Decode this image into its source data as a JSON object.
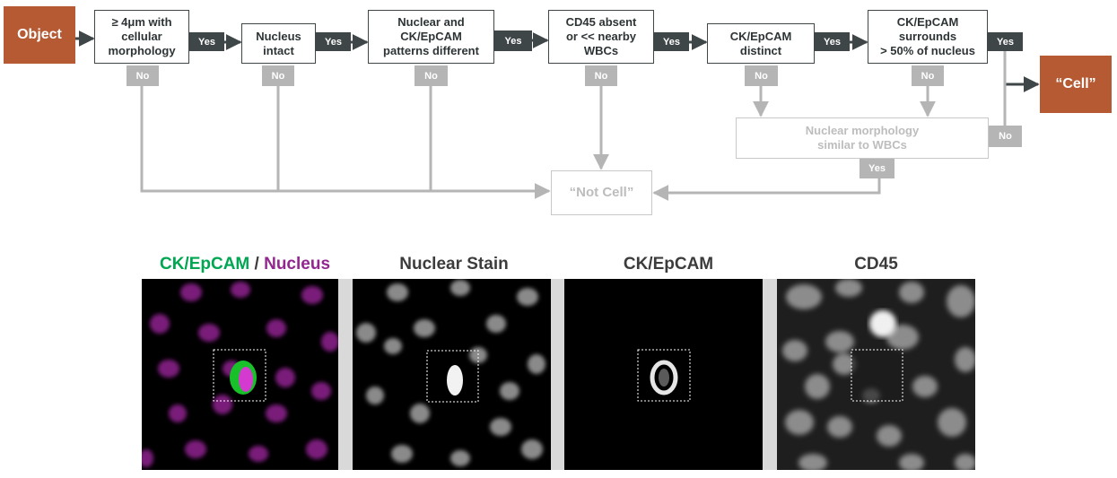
{
  "flowchart": {
    "start": "Object",
    "steps": [
      {
        "id": "size",
        "text": "≥ 4μm with\ncellular\nmorphology",
        "yes": "Yes",
        "no": "No"
      },
      {
        "id": "nucleus",
        "text": "Nucleus\nintact",
        "yes": "Yes",
        "no": "No"
      },
      {
        "id": "patterns",
        "text": "Nuclear and\nCK/EpCAM\npatterns different",
        "yes": "Yes",
        "no": "No"
      },
      {
        "id": "cd45",
        "text": "CD45 absent\nor << nearby\nWBCs",
        "yes": "Yes",
        "no": "No"
      },
      {
        "id": "distinct",
        "text": "CK/EpCAM\ndistinct",
        "yes": "Yes",
        "no": "No"
      },
      {
        "id": "surrounds",
        "text": "CK/EpCAM\nsurrounds\n> 50% of nucleus",
        "yes": "Yes",
        "no": "No"
      }
    ],
    "secondary": {
      "text": "Nuclear morphology\nsimilar to WBCs",
      "yes": "Yes",
      "no": "No"
    },
    "outcome_cell": "“Cell”",
    "outcome_not_cell": "“Not Cell”"
  },
  "panels": {
    "merged_title_a": "CK/EpCAM",
    "merged_title_sep": " / ",
    "merged_title_b": "Nucleus",
    "nuclear_title": "Nuclear Stain",
    "ck_title": "CK/EpCAM",
    "cd45_title": "CD45"
  },
  "colors": {
    "start_box": "#b65a34",
    "cell_box": "#b65a34",
    "yes_path": "#3f4648",
    "no_path": "#b5b5b5",
    "ck_green": "#00a651",
    "nucleus_magenta": "#92278f"
  }
}
